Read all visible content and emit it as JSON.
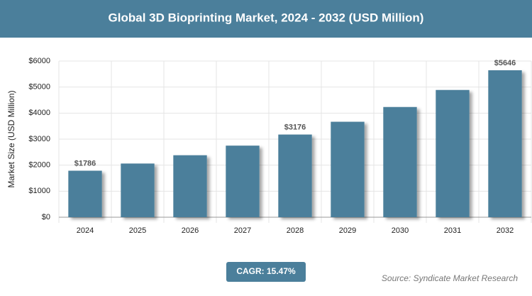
{
  "chart_data": {
    "type": "bar",
    "title": "Global 3D Bioprinting Market, 2024 - 2032 (USD Million)",
    "y_label": "Market Size (USD Million)",
    "categories": [
      "2024",
      "2025",
      "2026",
      "2027",
      "2028",
      "2029",
      "2030",
      "2031",
      "2032"
    ],
    "values": [
      1786,
      2062,
      2381,
      2750,
      3176,
      3667,
      4234,
      4889,
      5646
    ],
    "value_labels": [
      "$1786",
      null,
      null,
      null,
      "$3176",
      null,
      null,
      null,
      "$5646"
    ],
    "color": "#4b7f9b",
    "ylim": [
      0,
      6000
    ],
    "yticks": [
      {
        "value": 0,
        "label": "$0"
      },
      {
        "value": 1000,
        "label": "$1000"
      },
      {
        "value": 2000,
        "label": "$2000"
      },
      {
        "value": 3000,
        "label": "$3000"
      },
      {
        "value": 4000,
        "label": "$4000"
      },
      {
        "value": 5000,
        "label": "$5000"
      },
      {
        "value": 6000,
        "label": "$6000"
      }
    ],
    "grid": true,
    "cagr": "CAGR: 15.47%",
    "source": "Source: Syndicate Market Research"
  }
}
